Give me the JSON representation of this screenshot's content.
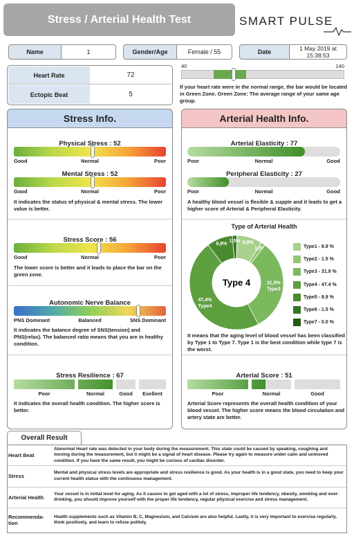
{
  "header": {
    "title": "Stress / Arterial Health Test",
    "brand": "SMART PULSE"
  },
  "info": {
    "name_label": "Name",
    "name": "1",
    "gender_age_label": "Gender/Age",
    "gender_age": "Female / 55",
    "date_label": "Date",
    "date": "1 May 2019 at 15:38:53"
  },
  "vitals": {
    "heart_rate_label": "Heart Rate",
    "heart_rate": 72,
    "ectopic_label": "Ectopic Beat",
    "ectopic": 5
  },
  "hr_scale": {
    "min": 40,
    "max": 140,
    "green_zone": [
      60,
      80
    ],
    "note": "If your heart rate were in the normal range, the bar would be located in Green Zone. Green Zone: The average range of your same age group."
  },
  "gauge_range": [
    0,
    100
  ],
  "stress": {
    "heading": "Stress Info.",
    "physical": {
      "label": "Physical Stress : 52",
      "value": 52
    },
    "mental": {
      "label": "Mental Stress : 52",
      "value": 52
    },
    "scale": [
      "Good",
      "Normal",
      "Poor"
    ],
    "note1": "It indicates the status of physical & mental stress. The lower value is better.",
    "score": {
      "label": "Stress Score : 56",
      "value": 56
    },
    "note2": "The lower score is better and it leads to place the bar on the green zone.",
    "ans": {
      "label": "Autonomic Nerve Balance",
      "value": 82,
      "scale": [
        "PNS Dominant",
        "Balanced",
        "SNS Dominant"
      ]
    },
    "note3": "It indicates the balance degree of SNS(tension) and PNS(relax). The balanced ratio means that you are in healthy condition.",
    "resilience": {
      "label": "Stress Resilience : 67",
      "value": 67,
      "scale": [
        "Poor",
        "Normal",
        "Good",
        "Exellent"
      ]
    },
    "note4": "It indicates the overall health condition. The higher score is better."
  },
  "arterial": {
    "heading": "Arterial Health Info.",
    "elasticity": {
      "label": "Arterial Elasticity : 77",
      "value": 77
    },
    "peripheral": {
      "label": "Peripheral Elasticity : 27",
      "value": 27
    },
    "scale": [
      "Poor",
      "Normal",
      "Good"
    ],
    "note1": "A healthy blood vessel is flexible & supple and it leads to get a higher score of Arterial & Peripheral Elasticity.",
    "types": {
      "title": "Type of Arterial Health",
      "center": "Type 4",
      "values": [
        8.9,
        1.5,
        31.9,
        47.4,
        8.9,
        1.5,
        0.0
      ],
      "legend_labels": [
        "Type1 - 8.9 %",
        "Type2 - 1.5 %",
        "Type3 - 31.9 %",
        "Type4 - 47.4 %",
        "Type5 - 8.9 %",
        "Type6 - 1.5 %",
        "Type7 - 0.0 %"
      ],
      "slice_labels": [
        "8,9%",
        "1,5%",
        "31,9%",
        "47,4%",
        "8,9%",
        "1,5%",
        null
      ],
      "slice_names": [
        null,
        null,
        "Type3",
        "Type4",
        null,
        null,
        null
      ],
      "colors": [
        "#a9d18e",
        "#93c576",
        "#7cb85e",
        "#5e9f3f",
        "#4a8a2f",
        "#377424",
        "#245a17"
      ]
    },
    "note2": "It means that the aging level of blood vessel has  been classified by Type 1 to Type 7. Type 1 is the best condition while type 7 is the worst.",
    "score": {
      "label": "Arterial Score : 51",
      "value": 51,
      "scale": [
        "Poor",
        "Normal",
        "Good"
      ]
    },
    "note3": "Arterial Score represents the overall health condition of your blood vessel. The higher score means the blood circulation and artery state are better."
  },
  "overall": {
    "tab": "Overall Result",
    "rows": [
      [
        "Heart Beat",
        "Abnormal Heart rate was detected in your body during the measurement. This state could be caused by speaking, coughing and moving during the measurement, but it might be a signal of heart disease. Please try again to measure under calm and unmoved condition. If you have the same result, you might be curious of cardiac disorder."
      ],
      [
        "Stress",
        "Mental and physical stress levels are appropriate and stress resilience is good. As your health is in a good state, you need to keep your current health status with the continuous management."
      ],
      [
        "Arterial Health",
        "Your vessel is in initial level for aging. As it causes to get aged with a lot of stress, improper life tendency, obesity, smoking and over-drinking, you should improve yourself with the proper life tendency, regular physical exercise and stress management."
      ],
      [
        "Recommenda-tion",
        "Health supplements such as Vitamin B, C, Magnesium, and Calcium are also helpful. Lastly, it is very important to exercise regularly, think positively, and learn to refuse politely."
      ]
    ]
  }
}
